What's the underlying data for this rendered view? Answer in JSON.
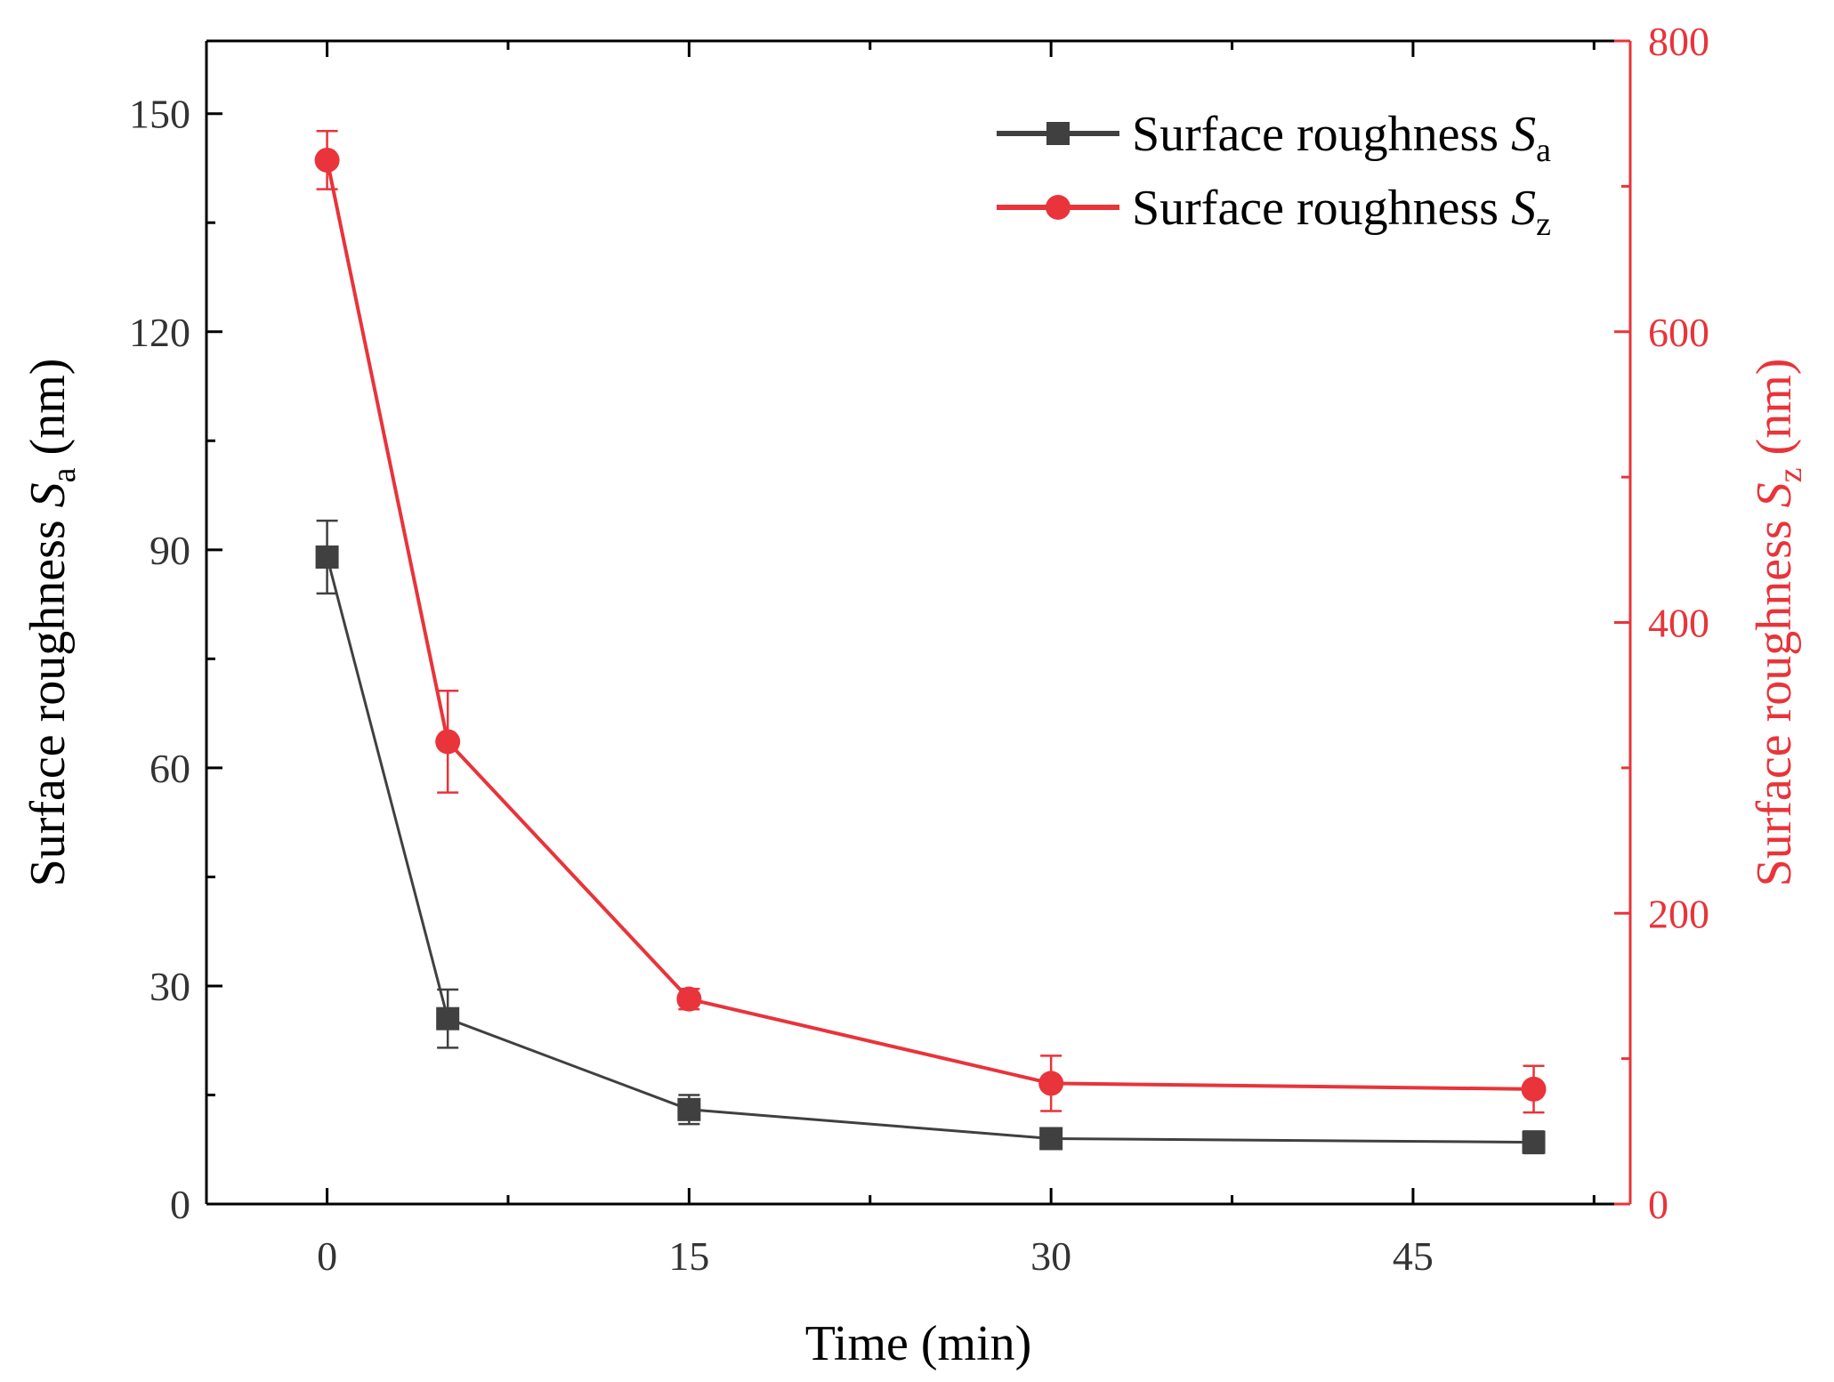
{
  "chart_data": {
    "type": "line",
    "title": "",
    "xlabel": "Time (min)",
    "ylabel_left": {
      "text": "Surface roughness ",
      "symbol": "S",
      "subscript": "a",
      "unit": " (nm)"
    },
    "ylabel_right": {
      "text": "Surface roughness ",
      "symbol": "S",
      "subscript": "z",
      "unit": " (nm)"
    },
    "xlim": [
      -5,
      54
    ],
    "ylim_left": [
      0,
      160
    ],
    "ylim_right": [
      0,
      800
    ],
    "xticks": [
      0,
      15,
      30,
      45
    ],
    "xtick_labels": [
      "0",
      "15",
      "30",
      "45"
    ],
    "yticks_left": [
      0,
      30,
      60,
      90,
      120,
      150
    ],
    "ytick_labels_left": [
      "0",
      "30",
      "60",
      "90",
      "120",
      "150"
    ],
    "yticks_right": [
      0,
      200,
      400,
      600,
      800
    ],
    "ytick_labels_right": [
      "0",
      "200",
      "400",
      "600",
      "800"
    ],
    "grid": false,
    "legend_position": "top-right",
    "series": [
      {
        "name": "Surface roughness Sa",
        "label_text": "Surface roughness ",
        "label_symbol": "S",
        "label_subscript": "a",
        "axis": "left",
        "color": "#404040",
        "marker": "square",
        "x": [
          0,
          5,
          15,
          30,
          50
        ],
        "y": [
          89,
          25.5,
          13,
          9,
          8.5
        ],
        "error": [
          5,
          4,
          2,
          1.2,
          1.5
        ]
      },
      {
        "name": "Surface roughness Sz",
        "label_text": "Surface roughness ",
        "label_symbol": "S",
        "label_subscript": "z",
        "axis": "right",
        "color": "#e8343a",
        "marker": "circle",
        "x": [
          0,
          5,
          15,
          30,
          50
        ],
        "y": [
          718,
          318,
          141,
          83,
          79
        ],
        "error": [
          20,
          35,
          7,
          19,
          16
        ]
      }
    ]
  }
}
